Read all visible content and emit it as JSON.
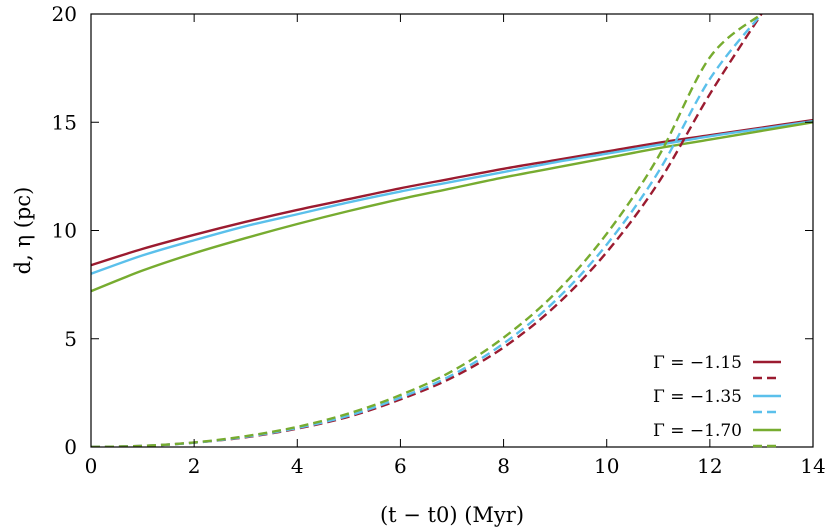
{
  "chart_data": {
    "type": "line",
    "xlabel": "(t − t0) (Myr)",
    "ylabel": "d, η (pc)",
    "xlim": [
      0,
      14
    ],
    "ylim": [
      0,
      20
    ],
    "x_ticks": [
      0,
      2,
      4,
      6,
      8,
      10,
      12,
      14
    ],
    "y_ticks": [
      0,
      5,
      10,
      15,
      20
    ],
    "grid": false,
    "legend_position": "bottom-right",
    "legend": [
      {
        "label": "Γ = −1.15",
        "color": "#9b1b30"
      },
      {
        "label": "Γ = −1.35",
        "color": "#5bc0eb"
      },
      {
        "label": "Γ = −1.70",
        "color": "#77ac30"
      }
    ],
    "x": [
      0,
      1,
      2,
      3,
      4,
      5,
      6,
      7,
      8,
      9,
      10,
      11,
      12,
      13,
      14
    ],
    "series": [
      {
        "name": "Γ = −1.15",
        "style": "solid",
        "color": "#9b1b30",
        "values": [
          8.4,
          9.15,
          9.8,
          10.4,
          10.95,
          11.45,
          11.95,
          12.4,
          12.85,
          13.25,
          13.65,
          14.05,
          14.4,
          14.75,
          15.1
        ]
      },
      {
        "name": "Γ = −1.35",
        "style": "solid",
        "color": "#5bc0eb",
        "values": [
          8.0,
          8.85,
          9.55,
          10.2,
          10.75,
          11.3,
          11.8,
          12.25,
          12.7,
          13.15,
          13.55,
          13.95,
          14.35,
          14.7,
          15.05
        ]
      },
      {
        "name": "Γ = −1.70",
        "style": "solid",
        "color": "#77ac30",
        "values": [
          7.2,
          8.15,
          8.95,
          9.65,
          10.3,
          10.9,
          11.45,
          11.95,
          12.45,
          12.9,
          13.35,
          13.8,
          14.2,
          14.6,
          15.0
        ]
      },
      {
        "name": "Γ = −1.15",
        "style": "dashed",
        "color": "#9b1b30",
        "values": [
          0.0,
          0.05,
          0.2,
          0.45,
          0.85,
          1.4,
          2.2,
          3.2,
          4.6,
          6.5,
          9.0,
          12.2,
          16.3,
          20.0,
          null
        ]
      },
      {
        "name": "Γ = −1.35",
        "style": "dashed",
        "color": "#5bc0eb",
        "values": [
          0.0,
          0.05,
          0.2,
          0.47,
          0.88,
          1.45,
          2.28,
          3.32,
          4.78,
          6.75,
          9.35,
          12.7,
          17.0,
          20.0,
          null
        ]
      },
      {
        "name": "Γ = −1.70",
        "style": "dashed",
        "color": "#77ac30",
        "values": [
          0.0,
          0.05,
          0.21,
          0.5,
          0.93,
          1.55,
          2.4,
          3.5,
          5.05,
          7.1,
          9.85,
          13.4,
          18.0,
          20.0,
          null
        ]
      }
    ]
  }
}
